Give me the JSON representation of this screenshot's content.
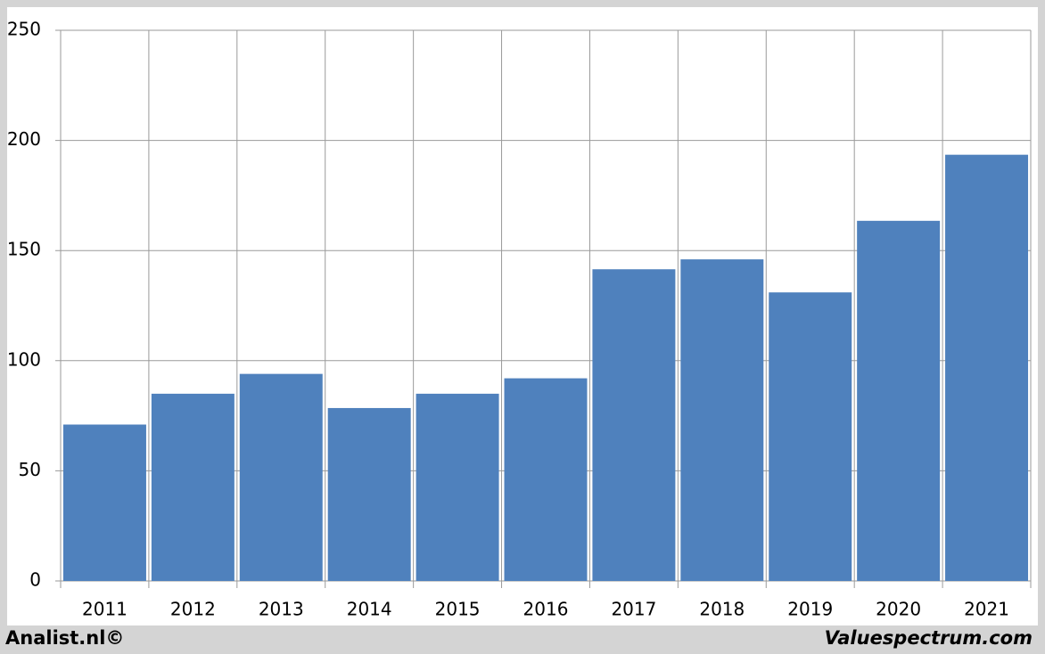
{
  "chart_data": {
    "type": "bar",
    "categories": [
      "2011",
      "2012",
      "2013",
      "2014",
      "2015",
      "2016",
      "2017",
      "2018",
      "2019",
      "2020",
      "2021"
    ],
    "values": [
      71,
      85,
      94,
      78.5,
      85,
      92,
      141.5,
      146,
      131,
      163.5,
      193.5
    ],
    "color": "#4f81bd",
    "ylim": [
      0,
      250
    ],
    "yticks": [
      0,
      50,
      100,
      150,
      200,
      250
    ],
    "grid": true,
    "credits": [
      "Analist.nl©",
      "Valuespectrum.com"
    ]
  }
}
